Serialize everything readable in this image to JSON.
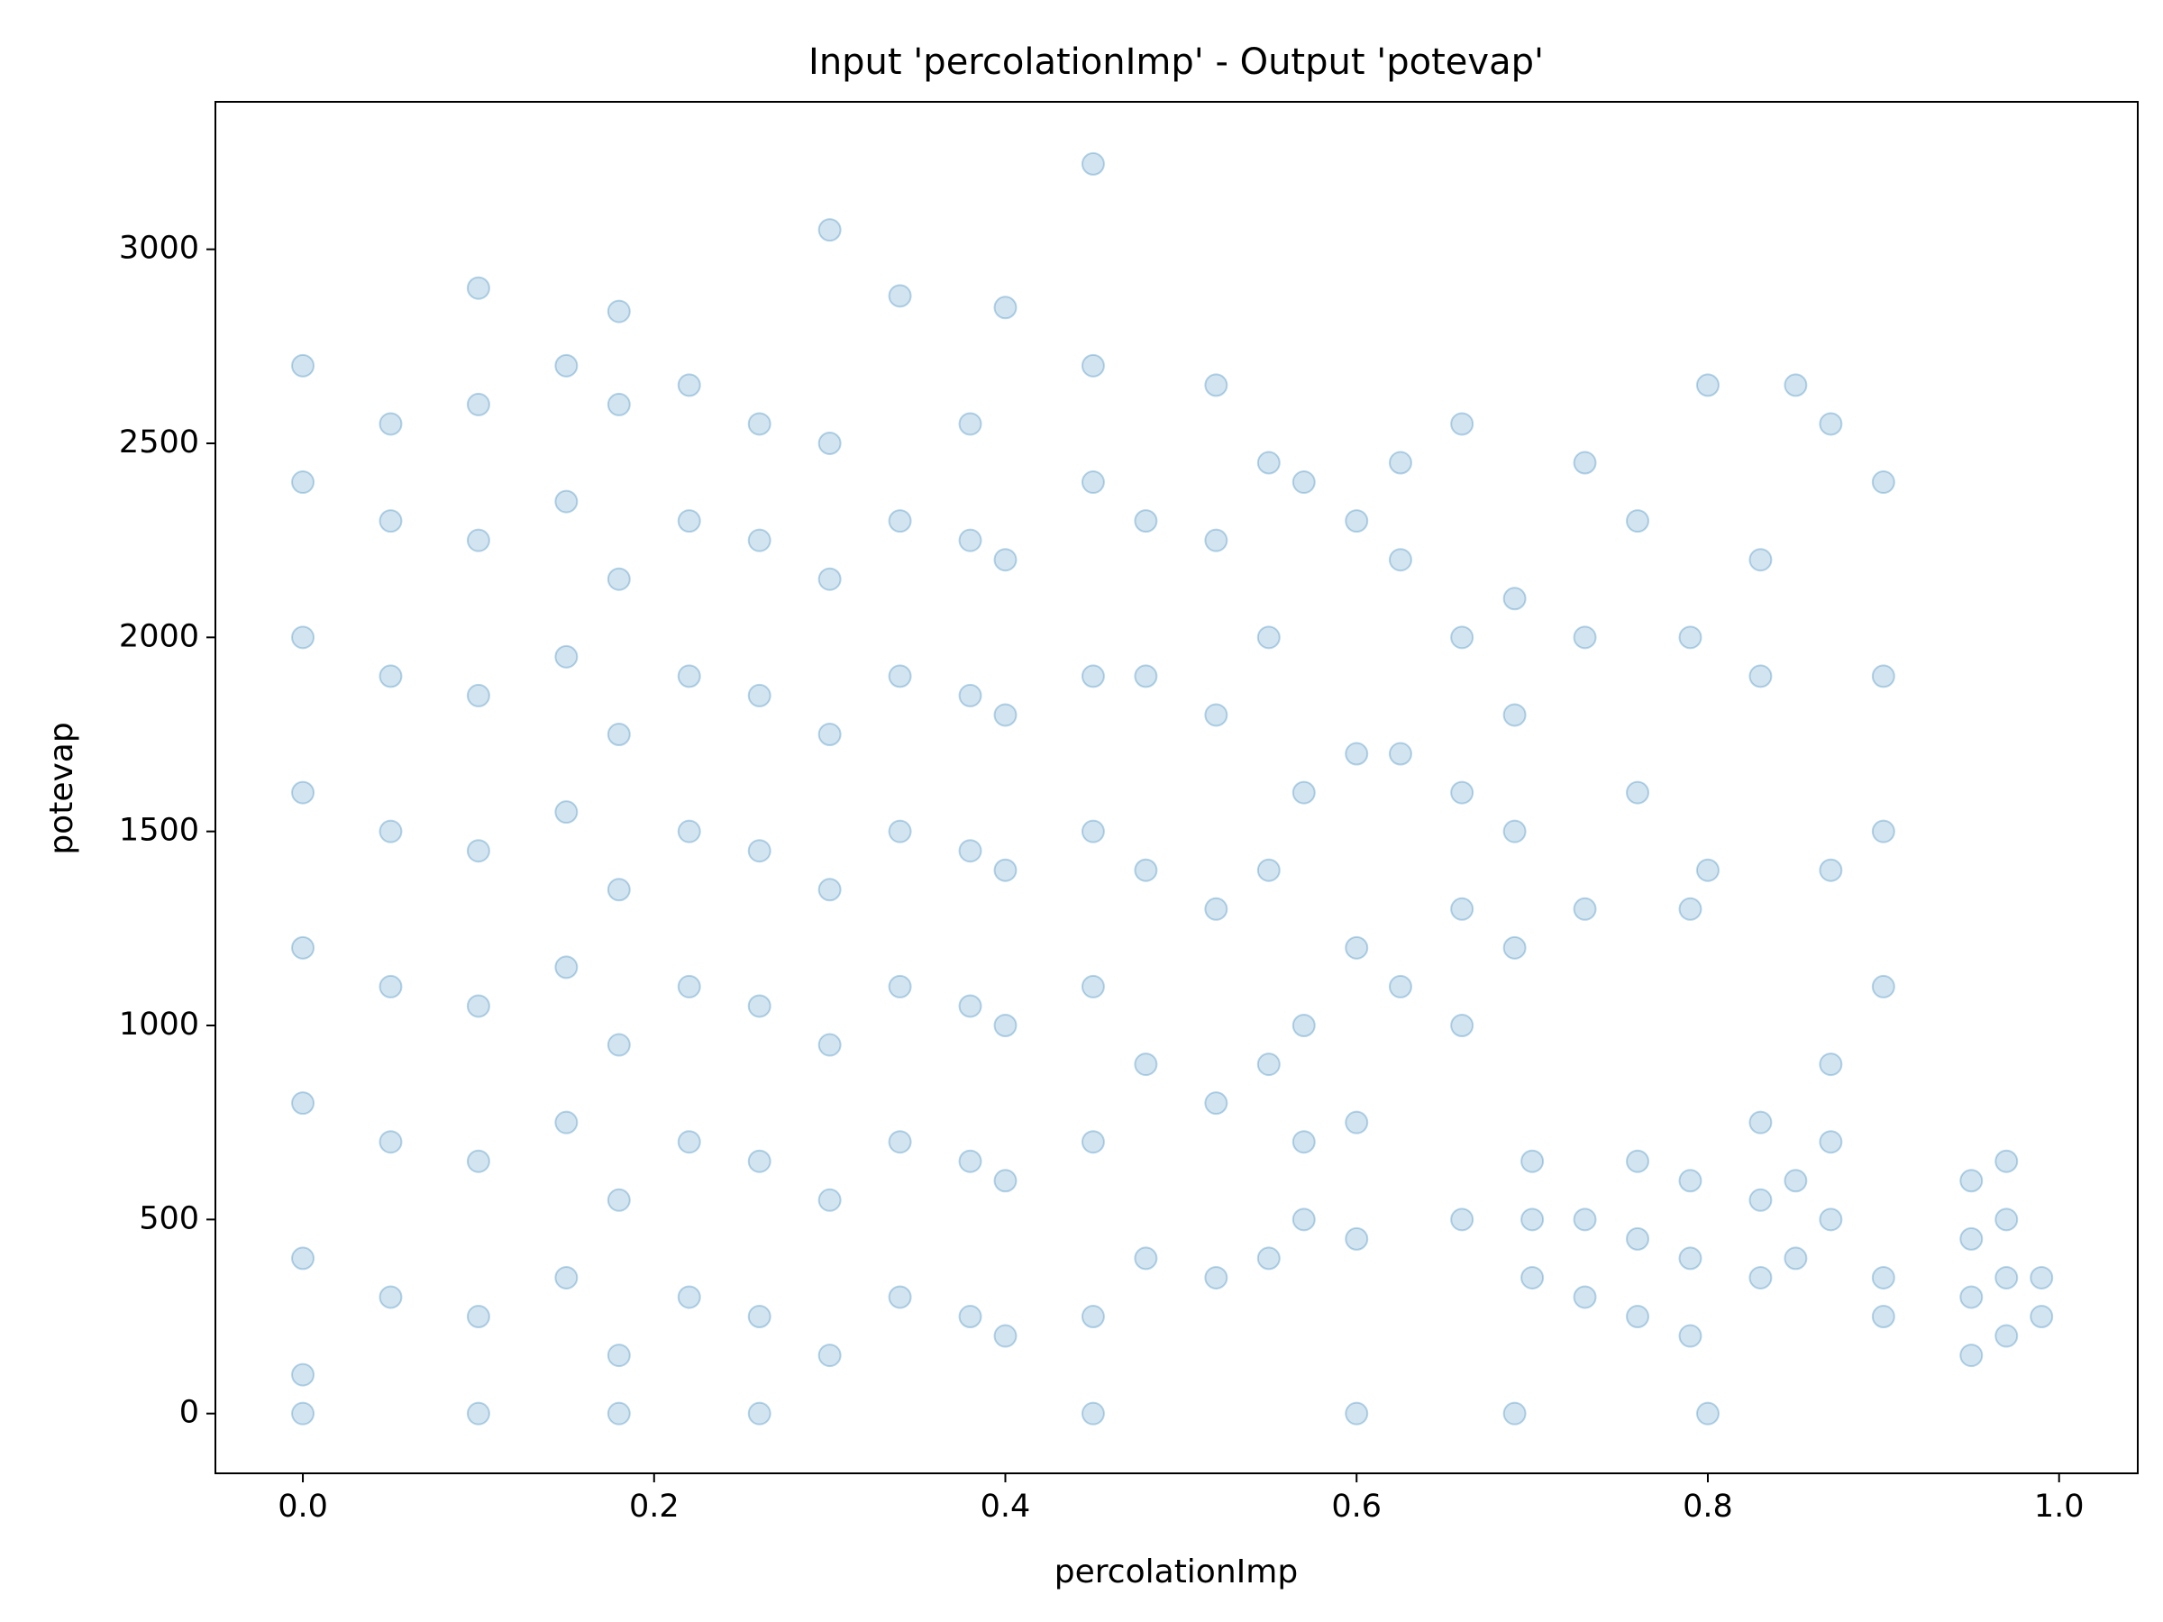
{
  "chart_data": {
    "type": "scatter",
    "title": "Input 'percolationImp' - Output 'potevap'",
    "x_label": "percolationImp",
    "y_label": "potevap",
    "color": "#1f77b4",
    "grid": false,
    "xlim": [
      -0.0498,
      1.0448
    ],
    "ylim": [
      -154,
      3380
    ],
    "xticks": [
      {
        "value": 0,
        "label": "0.0"
      },
      0.2,
      0.4,
      0.6,
      0.8,
      {
        "value": 1,
        "label": "1.0"
      }
    ],
    "yticks": [
      0,
      500,
      1000,
      1500,
      2000,
      2500,
      3000
    ],
    "x": [
      0,
      0,
      0,
      0,
      0,
      0,
      0,
      0,
      0,
      0.05,
      0.05,
      0.05,
      0.05,
      0.05,
      0.05,
      0.05,
      0.1,
      0.1,
      0.1,
      0.1,
      0.1,
      0.1,
      0.1,
      0.1,
      0.1,
      0.15,
      0.15,
      0.15,
      0.15,
      0.15,
      0.15,
      0.15,
      0.18,
      0.18,
      0.18,
      0.18,
      0.18,
      0.18,
      0.18,
      0.18,
      0.18,
      0.22,
      0.22,
      0.22,
      0.22,
      0.22,
      0.22,
      0.22,
      0.26,
      0.26,
      0.26,
      0.26,
      0.26,
      0.26,
      0.26,
      0.26,
      0.3,
      0.3,
      0.3,
      0.3,
      0.3,
      0.3,
      0.3,
      0.3,
      0.34,
      0.34,
      0.34,
      0.34,
      0.34,
      0.34,
      0.34,
      0.38,
      0.38,
      0.38,
      0.38,
      0.38,
      0.38,
      0.38,
      0.4,
      0.4,
      0.4,
      0.4,
      0.4,
      0.4,
      0.4,
      0.45,
      0.45,
      0.45,
      0.45,
      0.45,
      0.45,
      0.45,
      0.45,
      0.45,
      0.48,
      0.48,
      0.48,
      0.48,
      0.48,
      0.52,
      0.52,
      0.52,
      0.52,
      0.52,
      0.52,
      0.55,
      0.55,
      0.55,
      0.55,
      0.55,
      0.57,
      0.57,
      0.57,
      0.57,
      0.57,
      0.6,
      0.6,
      0.6,
      0.6,
      0.6,
      0.6,
      0.625,
      0.625,
      0.625,
      0.625,
      0.66,
      0.66,
      0.66,
      0.66,
      0.66,
      0.66,
      0.69,
      0.69,
      0.69,
      0.69,
      0.69,
      0.7,
      0.7,
      0.7,
      0.73,
      0.73,
      0.73,
      0.73,
      0.73,
      0.76,
      0.76,
      0.76,
      0.76,
      0.76,
      0.79,
      0.79,
      0.79,
      0.79,
      0.79,
      0.8,
      0.8,
      0.8,
      0.83,
      0.83,
      0.83,
      0.83,
      0.83,
      0.85,
      0.85,
      0.85,
      0.87,
      0.87,
      0.87,
      0.87,
      0.87,
      0.9,
      0.9,
      0.9,
      0.9,
      0.9,
      0.9,
      0.95,
      0.95,
      0.95,
      0.95,
      0.97,
      0.97,
      0.97,
      0.97,
      0.99,
      0.99
    ],
    "y": [
      100,
      400,
      800,
      1200,
      1600,
      2000,
      2400,
      2700,
      0,
      300,
      700,
      1100,
      1500,
      1900,
      2300,
      2550,
      250,
      650,
      1050,
      1450,
      1850,
      2250,
      2600,
      2900,
      0,
      350,
      750,
      1150,
      1550,
      1950,
      2350,
      2700,
      150,
      550,
      950,
      1350,
      1750,
      2150,
      2600,
      2840,
      0,
      300,
      700,
      1100,
      1500,
      1900,
      2300,
      2650,
      250,
      650,
      1050,
      1450,
      1850,
      2250,
      2550,
      0,
      150,
      550,
      950,
      1350,
      1750,
      2150,
      2500,
      3050,
      300,
      700,
      1100,
      1500,
      1900,
      2300,
      2880,
      250,
      650,
      1050,
      1450,
      1850,
      2250,
      2550,
      200,
      600,
      1000,
      1400,
      1800,
      2200,
      2850,
      250,
      700,
      1100,
      1500,
      1900,
      2400,
      2700,
      3220,
      0,
      400,
      900,
      1400,
      1900,
      2300,
      350,
      800,
      1300,
      1800,
      2250,
      2650,
      400,
      900,
      1400,
      2000,
      2450,
      500,
      700,
      1000,
      1600,
      2400,
      450,
      750,
      1200,
      1700,
      2300,
      0,
      1100,
      1700,
      2200,
      2450,
      500,
      1000,
      1300,
      1600,
      2000,
      2550,
      1200,
      1500,
      1800,
      2100,
      0,
      350,
      500,
      650,
      300,
      500,
      1300,
      2000,
      2450,
      250,
      450,
      650,
      1600,
      2300,
      200,
      400,
      600,
      1300,
      2000,
      1400,
      2650,
      0,
      350,
      550,
      750,
      1900,
      2200,
      400,
      600,
      2650,
      500,
      700,
      900,
      1400,
      2550,
      250,
      350,
      1100,
      1500,
      1900,
      2400,
      150,
      300,
      450,
      600,
      200,
      350,
      500,
      650,
      250,
      350
    ]
  }
}
